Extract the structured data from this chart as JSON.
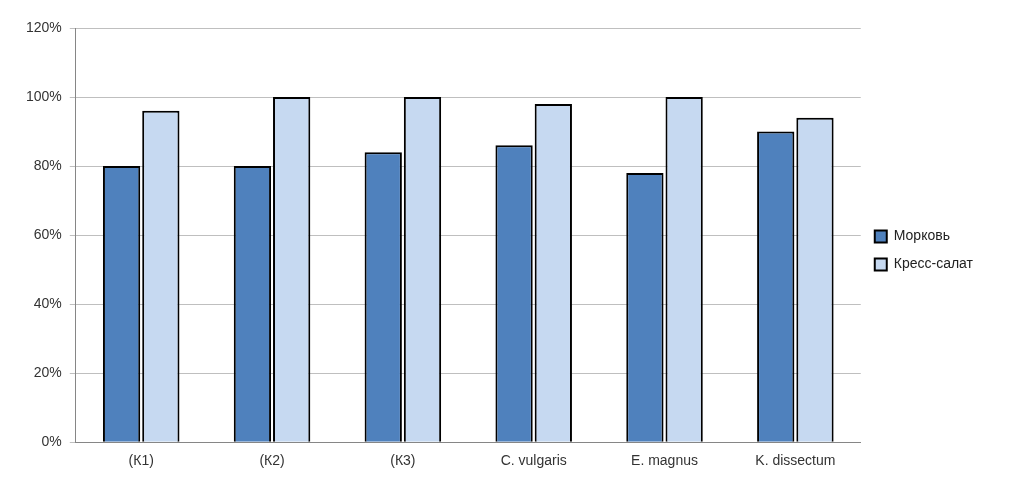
{
  "chart_data": {
    "type": "bar",
    "categories": [
      "(К1)",
      "(К2)",
      "(К3)",
      "C. vulgaris",
      "E. magnus",
      "K. dissectum"
    ],
    "series": [
      {
        "name": "Морковь",
        "color": "#4f81bd",
        "values": [
          80,
          80,
          84,
          86,
          78,
          90
        ]
      },
      {
        "name": "Кресс-салат",
        "color": "#c6d9f1",
        "values": [
          96,
          100,
          100,
          98,
          100,
          94
        ]
      }
    ],
    "ylim": [
      0,
      120
    ],
    "yticks": [
      {
        "value": 0,
        "label": "0%"
      },
      {
        "value": 20,
        "label": "20%"
      },
      {
        "value": 40,
        "label": "40%"
      },
      {
        "value": 60,
        "label": "60%"
      },
      {
        "value": 80,
        "label": "80%"
      },
      {
        "value": 100,
        "label": "100%"
      },
      {
        "value": 120,
        "label": "120%"
      }
    ],
    "grid": "y",
    "legend": "right"
  }
}
